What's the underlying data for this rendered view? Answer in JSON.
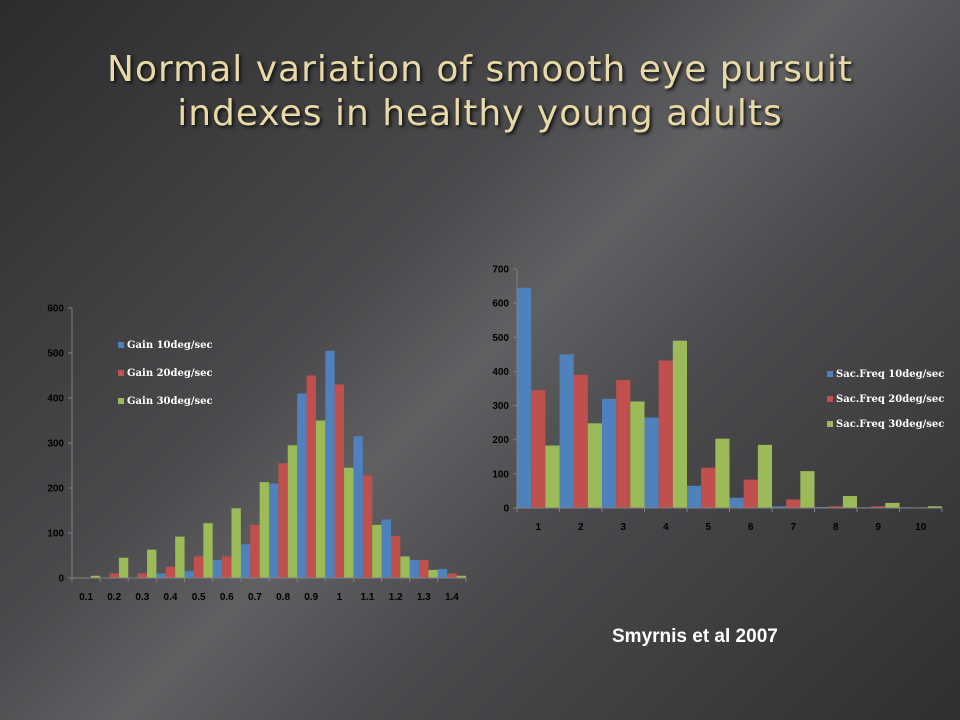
{
  "slide": {
    "title_lines": [
      "Normal variation of smooth eye pursuit",
      "indexes in healthy young adults"
    ],
    "citation": "Smyrnis et al 2007",
    "colors": {
      "series1": "#4f81bd",
      "series2": "#c0504d",
      "series3": "#9bbb59",
      "title": "#e8d9a6"
    }
  },
  "chart_data": [
    {
      "type": "bar",
      "categories": [
        "0.1",
        "0.2",
        "0.3",
        "0.4",
        "0.5",
        "0.6",
        "0.7",
        "0.8",
        "0.9",
        "1",
        "1.1",
        "1.2",
        "1.3",
        "1.4"
      ],
      "series": [
        {
          "name": "Gain 10deg/sec",
          "values": [
            0,
            0,
            0,
            10,
            15,
            40,
            75,
            210,
            410,
            505,
            315,
            130,
            40,
            20
          ]
        },
        {
          "name": "Gain 20deg/sec",
          "values": [
            0,
            10,
            10,
            25,
            48,
            48,
            118,
            255,
            450,
            430,
            228,
            93,
            40,
            10
          ]
        },
        {
          "name": "Gain 30deg/sec",
          "values": [
            5,
            45,
            63,
            92,
            122,
            155,
            213,
            295,
            350,
            245,
            118,
            48,
            18,
            5
          ]
        }
      ],
      "ylim": [
        0,
        600
      ],
      "yticks": [
        0,
        100,
        200,
        300,
        400,
        500,
        600
      ],
      "legend_position": "top-left",
      "grid": false
    },
    {
      "type": "bar",
      "categories": [
        "1",
        "2",
        "3",
        "4",
        "5",
        "6",
        "7",
        "8",
        "9",
        "10"
      ],
      "series": [
        {
          "name": "Sac.Freq 10deg/sec",
          "values": [
            645,
            450,
            320,
            265,
            65,
            30,
            5,
            3,
            2,
            2
          ]
        },
        {
          "name": "Sac.Freq 20deg/sec",
          "values": [
            345,
            390,
            375,
            432,
            118,
            83,
            25,
            5,
            5,
            2
          ]
        },
        {
          "name": "Sac.Freq 30deg/sec",
          "values": [
            183,
            248,
            312,
            490,
            203,
            185,
            108,
            35,
            15,
            5
          ]
        }
      ],
      "ylim": [
        0,
        700
      ],
      "yticks": [
        0,
        100,
        200,
        300,
        400,
        500,
        600,
        700
      ],
      "legend_position": "right",
      "grid": false
    }
  ]
}
